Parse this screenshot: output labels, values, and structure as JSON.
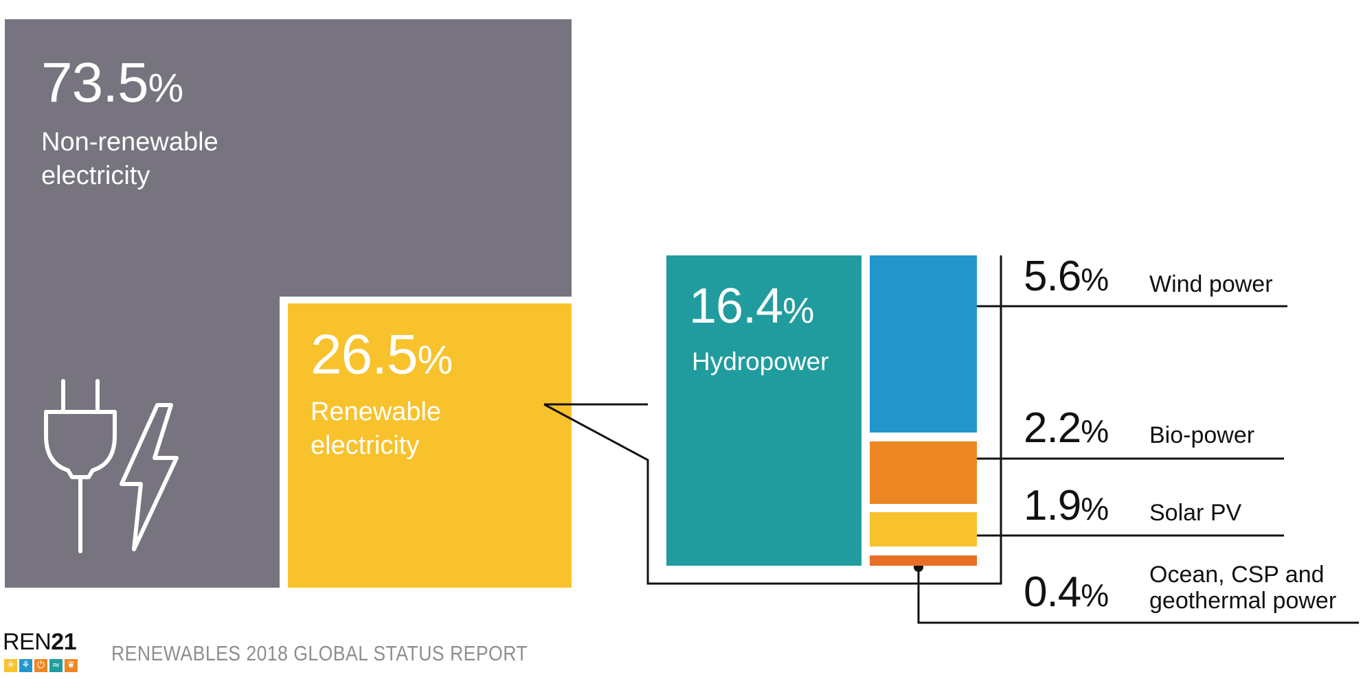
{
  "chart_data": {
    "type": "treemap",
    "series": [
      {
        "name": "Non-renewable electricity",
        "value": 73.5,
        "display": "73.5",
        "label_lines": [
          "Non-renewable",
          "electricity"
        ],
        "color": "#77747f"
      },
      {
        "name": "Renewable electricity",
        "value": 26.5,
        "display": "26.5",
        "label_lines": [
          "Renewable",
          "electricity"
        ],
        "color": "#f8c22d",
        "breakdown": [
          {
            "name": "Hydropower",
            "value": 16.4,
            "display": "16.4",
            "color": "#219c9e"
          },
          {
            "name": "Wind power",
            "value": 5.6,
            "display": "5.6",
            "color": "#2397cc"
          },
          {
            "name": "Bio-power",
            "value": 2.2,
            "display": "2.2",
            "color": "#ec8724"
          },
          {
            "name": "Solar PV",
            "value": 1.9,
            "display": "1.9",
            "color": "#f8c22d"
          },
          {
            "name": "Ocean, CSP and geothermal power",
            "value": 0.4,
            "display": "0.4",
            "label_lines": [
              "Ocean, CSP and",
              "geothermal power"
            ],
            "color": "#e86e25"
          }
        ]
      }
    ],
    "unit": "%"
  },
  "footer": {
    "logo_text_main": "REN",
    "logo_text_num": "21",
    "logo_icons": [
      "sun-icon",
      "wind-icon",
      "power-icon",
      "water-icon",
      "leaf-icon"
    ],
    "logo_icon_colors": [
      "#f8c22d",
      "#2397cc",
      "#ec8724",
      "#219c9e",
      "#ec8724"
    ],
    "report_title": "RENEWABLES 2018 GLOBAL STATUS REPORT"
  },
  "icons": [
    "plug-icon",
    "lightning-icon"
  ]
}
